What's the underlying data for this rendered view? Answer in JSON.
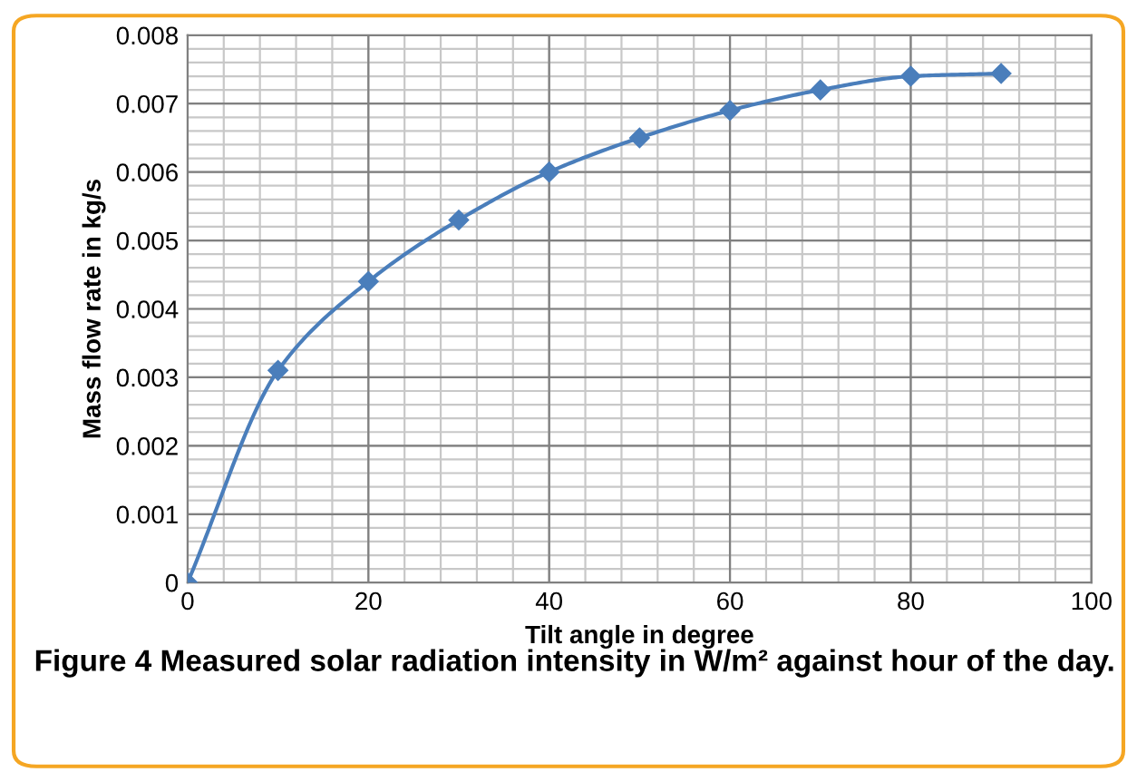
{
  "chart_data": {
    "type": "line",
    "xlabel": "Tilt angle in degree",
    "ylabel": "Mass flow rate in kg/s",
    "x": [
      0,
      10,
      20,
      30,
      40,
      50,
      60,
      70,
      80,
      90
    ],
    "series": [
      {
        "color": "#4a7ebb",
        "values": [
          0,
          0.0031,
          0.0044,
          0.0053,
          0.006,
          0.0065,
          0.0069,
          0.0072,
          0.0074,
          0.00744
        ]
      }
    ],
    "xlim": [
      0,
      100
    ],
    "xticks": [
      0,
      20,
      40,
      60,
      80,
      100
    ],
    "ylim": [
      0,
      0.008
    ],
    "yticks": [
      0,
      0.001,
      0.002,
      0.003,
      0.004,
      0.005,
      0.006,
      0.007,
      0.008
    ],
    "grid": true,
    "marker": "diamond",
    "line_style": "solid",
    "annotations": [
      "Figure 4 Measured solar radiation intensity in W/m² against hour of the day."
    ]
  }
}
